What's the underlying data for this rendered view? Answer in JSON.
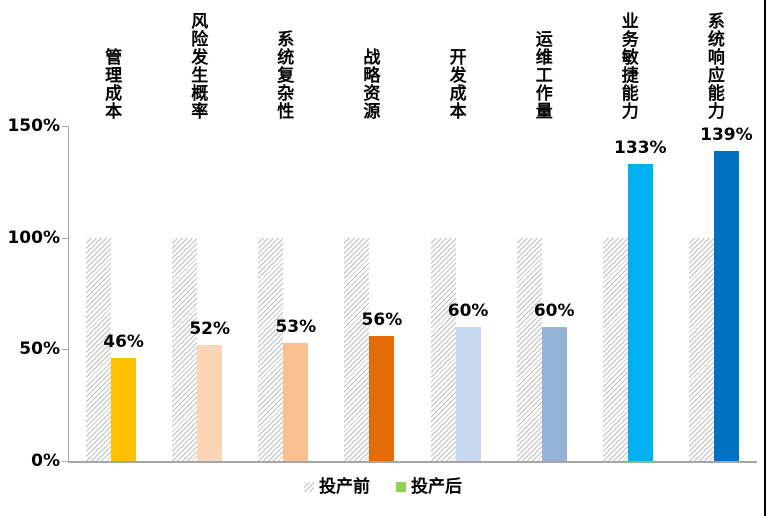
{
  "chart_data": {
    "type": "bar",
    "title": "",
    "xlabel": "",
    "ylabel": "",
    "categories": [
      "管理成本",
      "风险发生概率",
      "系统复杂性",
      "战略资源",
      "开发成本",
      "运维工作量",
      "业务敏捷能力",
      "系统响应能力"
    ],
    "series": [
      {
        "name": "投产前",
        "values": [
          100,
          100,
          100,
          100,
          100,
          100,
          100,
          100
        ],
        "style": "hatched",
        "hatch_color": "#BFBFBF"
      },
      {
        "name": "投产后",
        "values": [
          46,
          52,
          53,
          56,
          60,
          60,
          133,
          139
        ],
        "colors": [
          "#FFC000",
          "#FBD5B5",
          "#FAC090",
          "#E36C09",
          "#C5D9F1",
          "#95B3D7",
          "#00B0F0",
          "#0070C0"
        ]
      }
    ],
    "data_labels": [
      "46%",
      "52%",
      "53%",
      "56%",
      "60%",
      "60%",
      "133%",
      "139%"
    ],
    "ylim": [
      0,
      150
    ],
    "yticks": [
      {
        "value": 0,
        "label": "0%"
      },
      {
        "value": 50,
        "label": "50%"
      },
      {
        "value": 100,
        "label": "100%"
      },
      {
        "value": 150,
        "label": "150%"
      }
    ],
    "grid": false,
    "legend_position": "bottom",
    "legend": [
      {
        "label": "投产前",
        "swatch": "hatched"
      },
      {
        "label": "投产后",
        "swatch_color": "#92D050"
      }
    ]
  },
  "colors": {
    "axis": "#A6A6A6",
    "text": "#000000",
    "background": "#FFFFFF",
    "right_edge_line": "#000000"
  }
}
